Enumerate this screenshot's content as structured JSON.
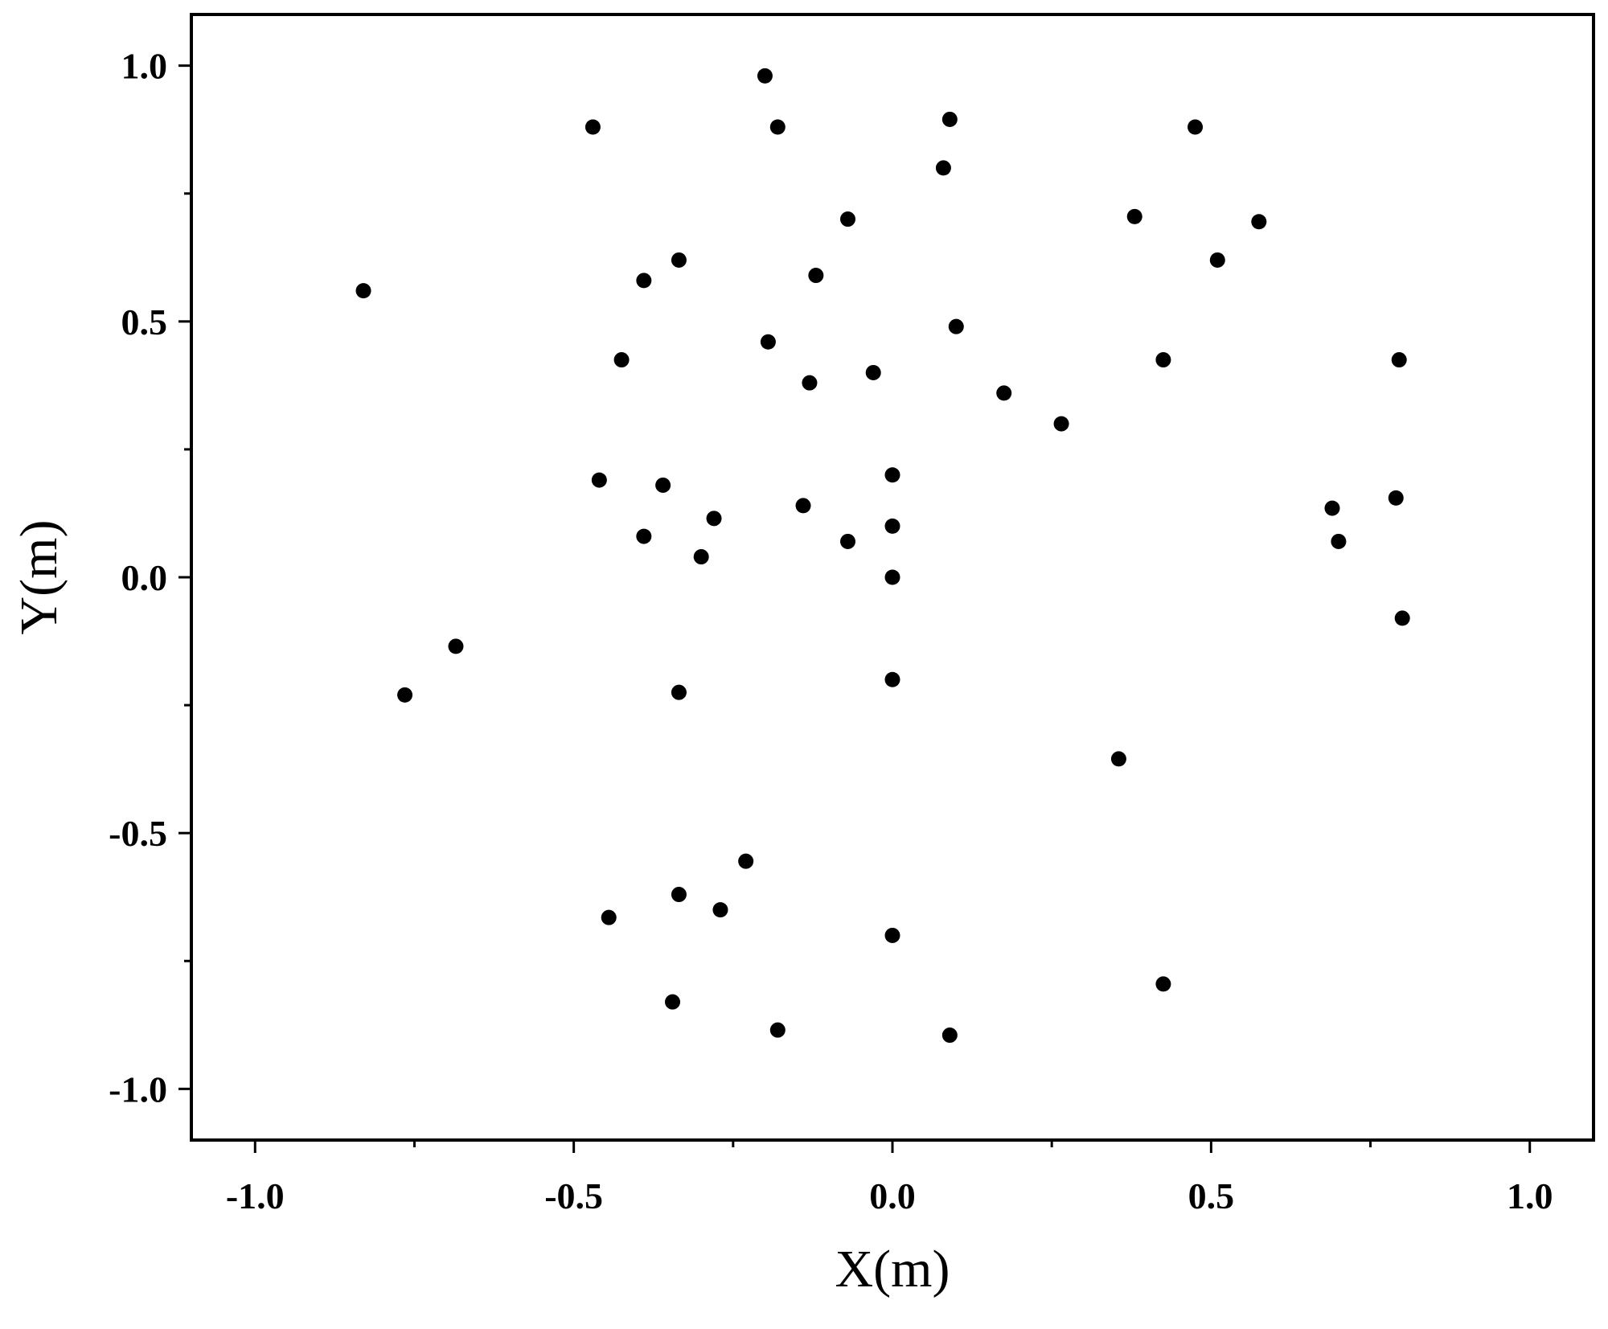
{
  "chart_data": {
    "type": "scatter",
    "xlabel": "X(m)",
    "ylabel": "Y(m)",
    "xlim": [
      -1.1,
      1.1
    ],
    "ylim": [
      -1.1,
      1.1
    ],
    "grid": false,
    "x_ticks": [
      -1.0,
      -0.5,
      0.0,
      0.5,
      1.0
    ],
    "x_tick_labels": [
      "-1.0",
      "-0.5",
      "0.0",
      "0.5",
      "1.0"
    ],
    "x_minor_ticks": [
      -0.75,
      -0.25,
      0.25,
      0.75
    ],
    "y_ticks": [
      1.0,
      0.5,
      0.0,
      -0.5,
      -1.0
    ],
    "y_tick_labels": [
      "1.0",
      "0.5",
      "0.0",
      "-0.5",
      "-1.0"
    ],
    "y_minor_ticks": [
      -0.75,
      -0.25,
      0.25,
      0.75
    ],
    "marker_color": "#000000",
    "points": [
      {
        "x": -0.83,
        "y": 0.56
      },
      {
        "x": -0.765,
        "y": -0.23
      },
      {
        "x": -0.685,
        "y": -0.135
      },
      {
        "x": -0.47,
        "y": 0.88
      },
      {
        "x": -0.46,
        "y": 0.19
      },
      {
        "x": -0.445,
        "y": -0.665
      },
      {
        "x": -0.425,
        "y": 0.425
      },
      {
        "x": -0.39,
        "y": 0.58
      },
      {
        "x": -0.39,
        "y": 0.08
      },
      {
        "x": -0.36,
        "y": 0.18
      },
      {
        "x": -0.345,
        "y": -0.83
      },
      {
        "x": -0.335,
        "y": 0.62
      },
      {
        "x": -0.335,
        "y": -0.225
      },
      {
        "x": -0.335,
        "y": -0.62
      },
      {
        "x": -0.3,
        "y": 0.04
      },
      {
        "x": -0.28,
        "y": 0.115
      },
      {
        "x": -0.27,
        "y": -0.65
      },
      {
        "x": -0.23,
        "y": -0.555
      },
      {
        "x": -0.2,
        "y": 0.98
      },
      {
        "x": -0.195,
        "y": 0.46
      },
      {
        "x": -0.18,
        "y": 0.88
      },
      {
        "x": -0.18,
        "y": -0.885
      },
      {
        "x": -0.14,
        "y": 0.14
      },
      {
        "x": -0.13,
        "y": 0.38
      },
      {
        "x": -0.12,
        "y": 0.59
      },
      {
        "x": -0.07,
        "y": 0.7
      },
      {
        "x": -0.07,
        "y": 0.07
      },
      {
        "x": -0.03,
        "y": 0.4
      },
      {
        "x": 0.0,
        "y": 0.2
      },
      {
        "x": 0.0,
        "y": 0.1
      },
      {
        "x": 0.0,
        "y": 0.0
      },
      {
        "x": 0.0,
        "y": -0.2
      },
      {
        "x": 0.0,
        "y": -0.7
      },
      {
        "x": 0.08,
        "y": 0.8
      },
      {
        "x": 0.09,
        "y": 0.895
      },
      {
        "x": 0.09,
        "y": -0.895
      },
      {
        "x": 0.1,
        "y": 0.49
      },
      {
        "x": 0.175,
        "y": 0.36
      },
      {
        "x": 0.265,
        "y": 0.3
      },
      {
        "x": 0.355,
        "y": -0.355
      },
      {
        "x": 0.38,
        "y": 0.705
      },
      {
        "x": 0.425,
        "y": 0.425
      },
      {
        "x": 0.425,
        "y": -0.795
      },
      {
        "x": 0.475,
        "y": 0.88
      },
      {
        "x": 0.51,
        "y": 0.62
      },
      {
        "x": 0.575,
        "y": 0.695
      },
      {
        "x": 0.69,
        "y": 0.135
      },
      {
        "x": 0.7,
        "y": 0.07
      },
      {
        "x": 0.79,
        "y": 0.155
      },
      {
        "x": 0.795,
        "y": 0.425
      },
      {
        "x": 0.8,
        "y": -0.08
      }
    ]
  }
}
